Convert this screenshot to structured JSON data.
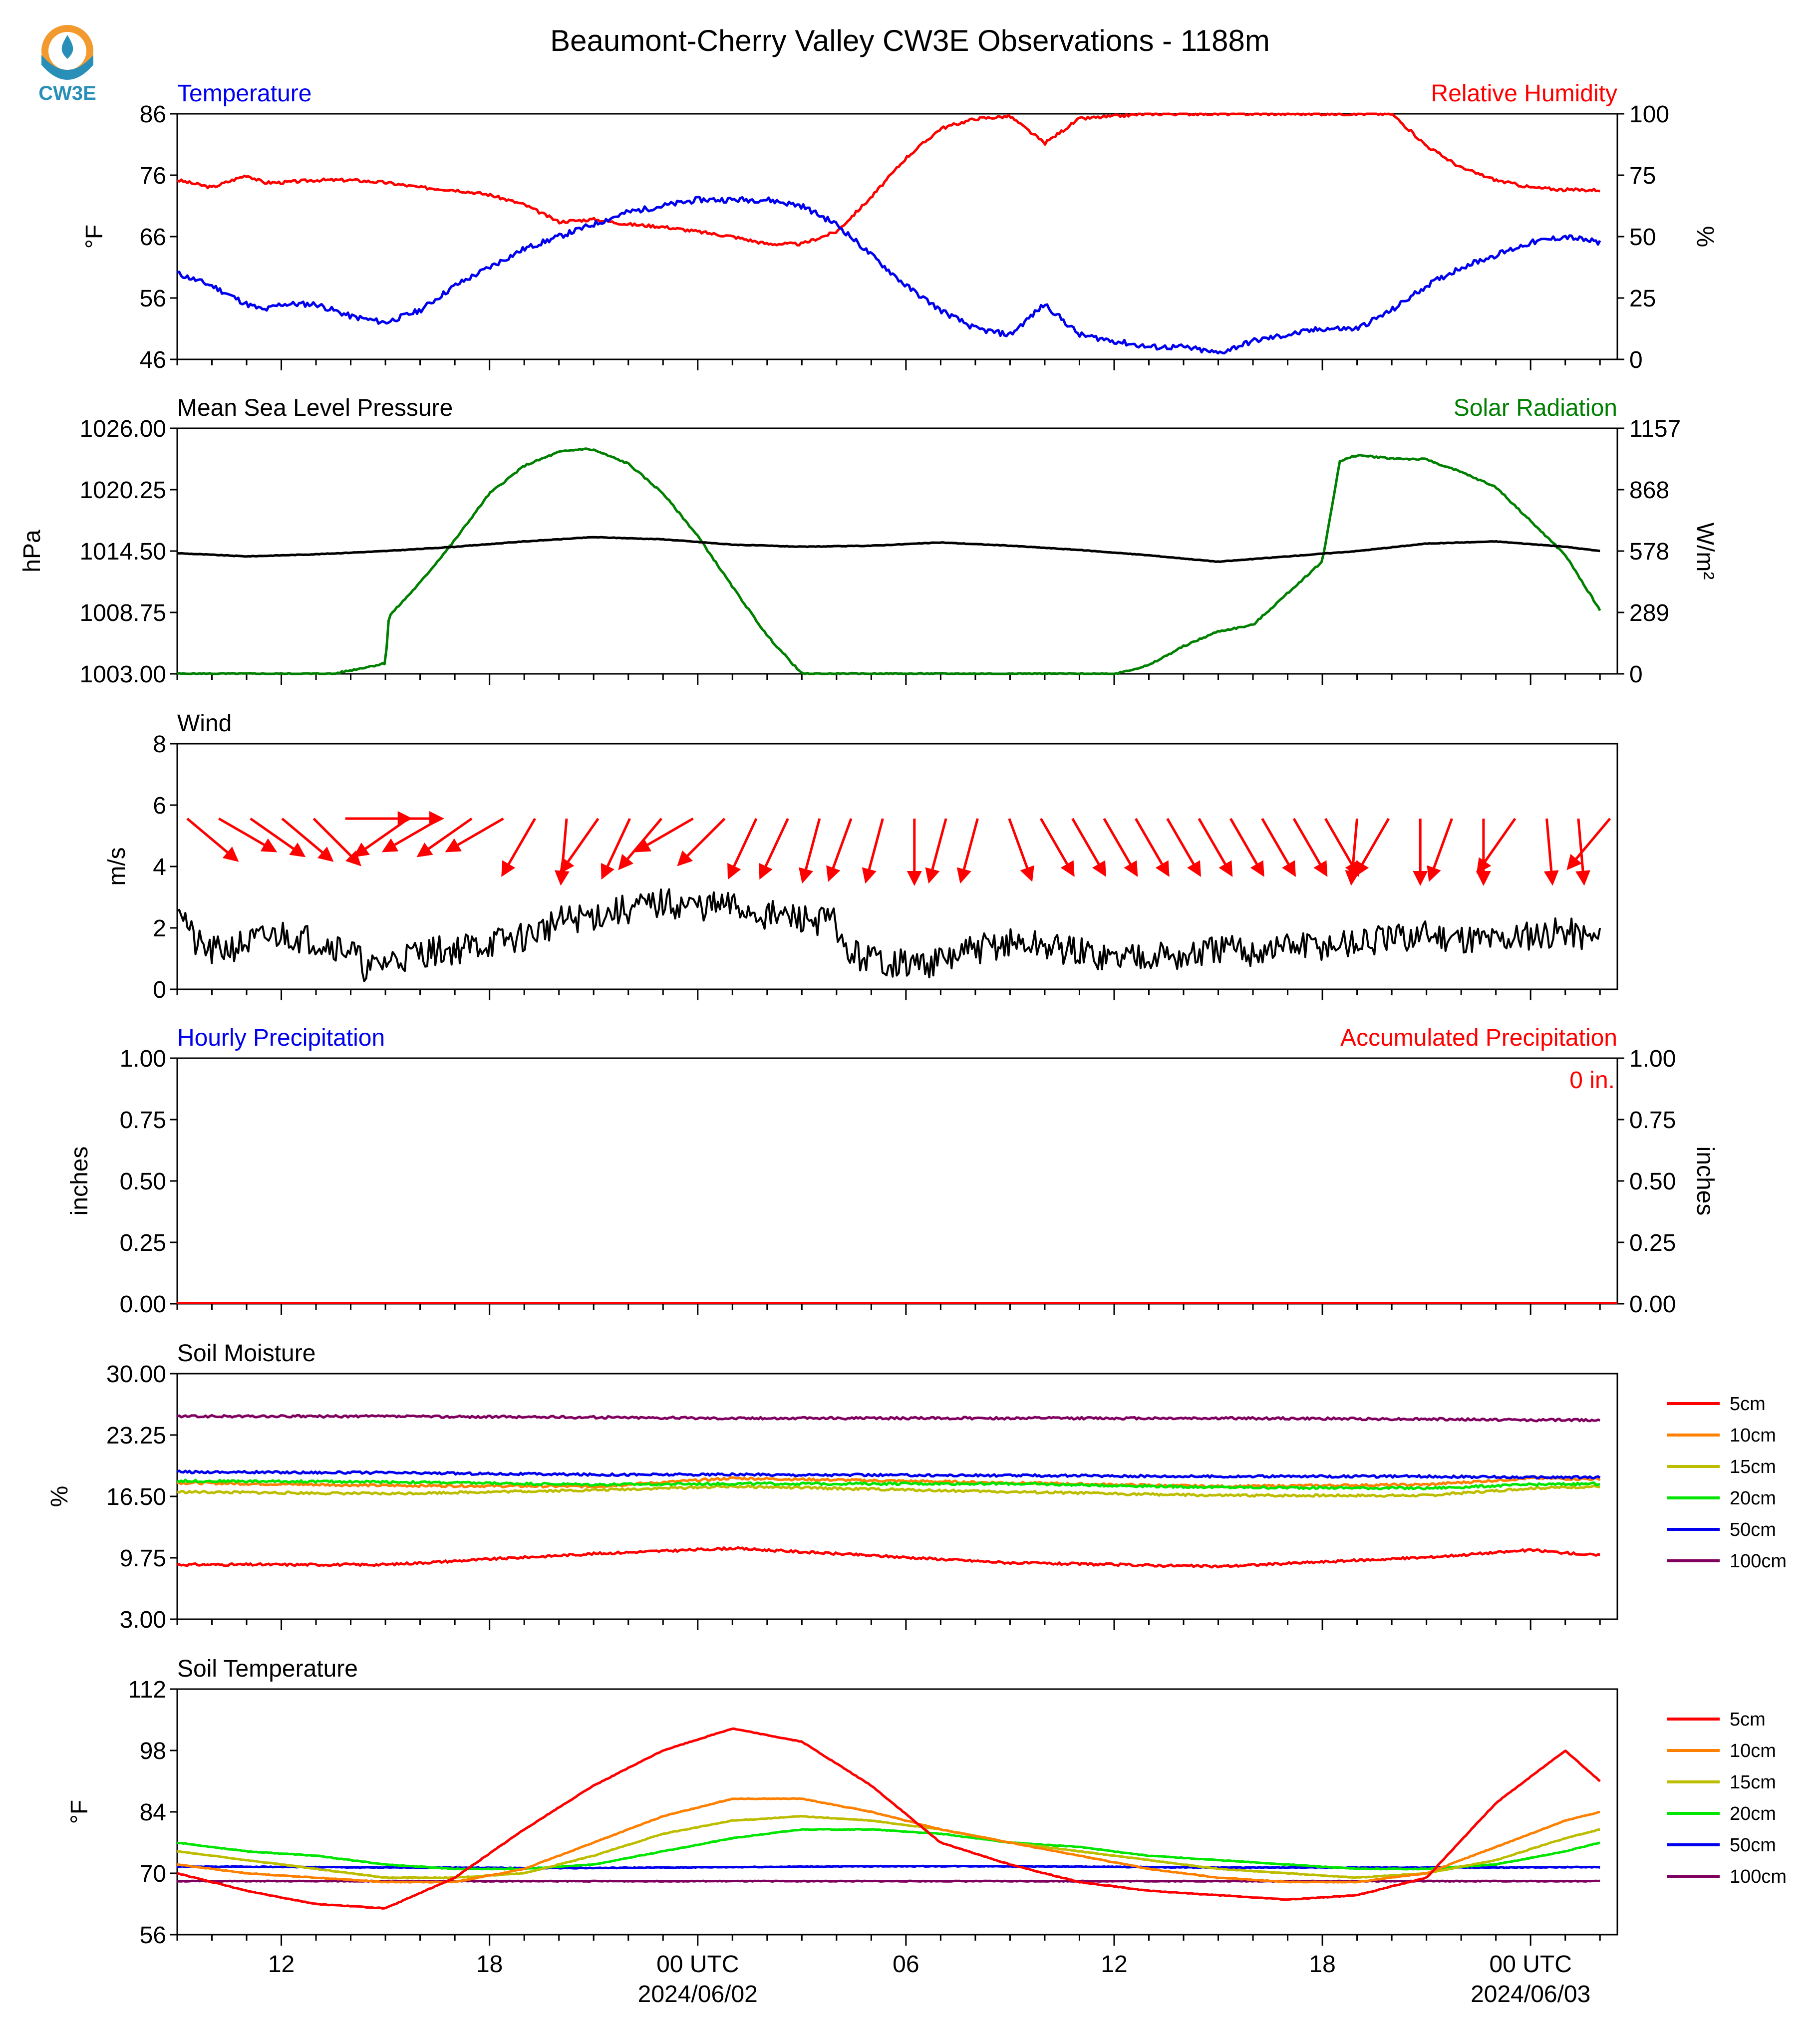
{
  "title": "Beaumont-Cherry Valley CW3E Observations - 1188m",
  "logo": {
    "text": "CW3E",
    "colors": [
      "#f29a2e",
      "#2a8fb8"
    ]
  },
  "x_axis": {
    "tick_labels": [
      "12",
      "18",
      "00 UTC",
      "06",
      "12",
      "18",
      "00 UTC"
    ],
    "date_labels": [
      "2024/06/02",
      "2024/06/03"
    ]
  },
  "colors": {
    "temperature": "#0000ee",
    "humidity": "#ff0000",
    "pressure": "#000000",
    "solar": "#008000",
    "wind": "#000000",
    "wind_arrow": "#ff0000",
    "accum": "#ff0000",
    "hourly": "#0000ee"
  },
  "chart_data": [
    {
      "type": "line",
      "title_left": "Temperature",
      "title_right": "Relative Humidity",
      "ylabel": "°F",
      "ylabel_right": "%",
      "ylim": [
        46,
        86
      ],
      "ylim_right": [
        0,
        100
      ],
      "yticks": [
        "86",
        "76",
        "66",
        "56",
        "46"
      ],
      "yticks_right": [
        "100",
        "75",
        "50",
        "25",
        "0"
      ],
      "x_hours_from_start": [
        0,
        1,
        2,
        2.5,
        3,
        4,
        5,
        6,
        7,
        8,
        9,
        10,
        11,
        12,
        13,
        14,
        15,
        16,
        17,
        18,
        19,
        20,
        21,
        22,
        23,
        24,
        25,
        26,
        27,
        28,
        29,
        30,
        31,
        32,
        33,
        34,
        35,
        36,
        37,
        38,
        39,
        40,
        41
      ],
      "series": [
        {
          "name": "Temperature",
          "values": [
            60,
            58,
            55,
            54,
            55,
            55,
            53,
            52,
            54,
            58,
            61,
            64,
            66,
            68,
            70,
            71,
            72,
            72,
            72,
            71,
            68,
            63,
            58,
            54,
            51,
            50,
            55,
            50,
            49,
            48,
            48,
            47,
            49,
            50,
            51,
            51,
            54,
            58,
            61,
            63,
            65,
            66,
            65
          ]
        },
        {
          "name": "Relative Humidity",
          "values": [
            73,
            70,
            75,
            72,
            72,
            73,
            73,
            72,
            70,
            69,
            67,
            63,
            56,
            57,
            55,
            54,
            52,
            50,
            47,
            47,
            52,
            66,
            82,
            94,
            98,
            99,
            88,
            98,
            99,
            100,
            100,
            100,
            100,
            100,
            100,
            100,
            100,
            87,
            78,
            73,
            70,
            69,
            69
          ]
        }
      ]
    },
    {
      "type": "line",
      "title_left": "Mean Sea Level Pressure",
      "title_right": "Solar Radiation",
      "ylabel": "hPa",
      "ylabel_right": "W/m²",
      "ylim": [
        1003.0,
        1026.0
      ],
      "ylim_right": [
        0,
        1157
      ],
      "yticks": [
        "1026.00",
        "1020.25",
        "1014.50",
        "1008.75",
        "1003.00"
      ],
      "yticks_right": [
        "1157",
        "868",
        "578",
        "289",
        "0"
      ],
      "pressure": {
        "name": "Mean Sea Level Pressure",
        "x_hours_from_start": [
          0,
          2,
          4,
          6,
          8,
          10,
          12,
          14,
          16,
          18,
          20,
          22,
          24,
          26,
          28,
          30,
          32,
          34,
          36,
          38,
          40,
          41
        ],
        "values": [
          1014.3,
          1014.0,
          1014.2,
          1014.5,
          1014.9,
          1015.4,
          1015.8,
          1015.6,
          1015.1,
          1014.9,
          1015.0,
          1015.3,
          1015.0,
          1014.6,
          1014.1,
          1013.5,
          1014.0,
          1014.5,
          1015.2,
          1015.4,
          1014.9,
          1014.5
        ]
      },
      "solar": {
        "name": "Solar Radiation",
        "x_hours_from_start": [
          0,
          3,
          4.5,
          6,
          6.1,
          7,
          8,
          9,
          10,
          11,
          11.7,
          12,
          13,
          14,
          15,
          16,
          17,
          18,
          19,
          27,
          28,
          29,
          30,
          31,
          32,
          33,
          33.5,
          34,
          35,
          36,
          37,
          38,
          39,
          40,
          41
        ],
        "values": [
          0,
          0,
          0,
          50,
          270,
          430,
          630,
          850,
          980,
          1045,
          1060,
          1055,
          990,
          850,
          650,
          410,
          180,
          0,
          0,
          0,
          40,
          130,
          200,
          230,
          380,
          530,
          1000,
          1030,
          1015,
          1010,
          950,
          880,
          720,
          560,
          300
        ]
      }
    },
    {
      "type": "line",
      "title_left": "Wind",
      "ylabel": "m/s",
      "ylim": [
        0,
        8
      ],
      "yticks": [
        "8",
        "6",
        "4",
        "2",
        "0"
      ],
      "x_hours_from_start": [
        0,
        0.5,
        1,
        2,
        3,
        4,
        5,
        5.5,
        6,
        7,
        8,
        9,
        10,
        11,
        12,
        13,
        14,
        15,
        16,
        17,
        18,
        19,
        19.2,
        20,
        21,
        22,
        23,
        24,
        25,
        26,
        27,
        28,
        29,
        30,
        31,
        32,
        33,
        34,
        35,
        36,
        37,
        38,
        39,
        40,
        41
      ],
      "values": [
        3.0,
        1.5,
        1.2,
        1.5,
        1.8,
        1.6,
        1.3,
        0.6,
        0.9,
        1.2,
        1.3,
        1.5,
        1.7,
        2.2,
        2.4,
        2.6,
        2.8,
        2.7,
        2.7,
        2.4,
        2.3,
        2.2,
        1.2,
        1.0,
        0.8,
        0.9,
        1.3,
        1.5,
        1.4,
        1.2,
        1.0,
        1.2,
        1.0,
        1.3,
        1.2,
        1.4,
        1.4,
        1.5,
        1.6,
        1.8,
        1.7,
        1.6,
        1.8,
        1.9,
        1.6
      ],
      "arrow_direction_deg": [
        320,
        330,
        325,
        320,
        315,
        0,
        0,
        215,
        210,
        215,
        210,
        240,
        265,
        235,
        245,
        230,
        210,
        225,
        245,
        245,
        255,
        250,
        255,
        270,
        255,
        255,
        290,
        300,
        300,
        300,
        300,
        300,
        300,
        300,
        300,
        300,
        300,
        265,
        240,
        270,
        250,
        270,
        235,
        275,
        275,
        230
      ]
    },
    {
      "type": "line",
      "title_left": "Hourly Precipitation",
      "title_right": "Accumulated Precipitation",
      "ylabel": "inches",
      "ylabel_right": "inches",
      "ylim": [
        0,
        1
      ],
      "yticks": [
        "1.00",
        "0.75",
        "0.50",
        "0.25",
        "0.00"
      ],
      "accum_label": "0 in.",
      "values": [
        0,
        0
      ]
    },
    {
      "type": "line",
      "title_left": "Soil Moisture",
      "ylabel": "%",
      "ylim": [
        3.0,
        30.0
      ],
      "yticks": [
        "30.00",
        "23.25",
        "16.50",
        "9.75",
        "3.00"
      ],
      "x_hours_from_start": [
        0,
        6,
        12,
        16,
        24,
        30,
        36,
        39,
        41
      ],
      "series": [
        {
          "name": "5cm",
          "color": "#ff0000",
          "values": [
            9.0,
            9.0,
            10.2,
            10.8,
            9.2,
            8.8,
            9.8,
            10.6,
            10.0
          ]
        },
        {
          "name": "10cm",
          "color": "#ff8000",
          "values": [
            18.0,
            17.7,
            17.6,
            18.5,
            18.0,
            17.6,
            17.8,
            18.5,
            18.4
          ]
        },
        {
          "name": "15cm",
          "color": "#bdbd00",
          "values": [
            17.0,
            16.8,
            17.2,
            17.6,
            17.0,
            16.6,
            16.6,
            17.4,
            17.6
          ]
        },
        {
          "name": "20cm",
          "color": "#00e600",
          "values": [
            18.2,
            18.1,
            17.8,
            17.9,
            17.9,
            17.5,
            17.4,
            17.8,
            17.9
          ]
        },
        {
          "name": "50cm",
          "color": "#0000ee",
          "values": [
            19.2,
            19.1,
            18.9,
            18.9,
            18.8,
            18.7,
            18.7,
            18.6,
            18.6
          ]
        },
        {
          "name": "100cm",
          "color": "#800060",
          "values": [
            25.3,
            25.3,
            25.2,
            25.1,
            25.1,
            25.1,
            25.0,
            24.9,
            24.9
          ]
        }
      ]
    },
    {
      "type": "line",
      "title_left": "Soil Temperature",
      "ylabel": "°F",
      "ylim": [
        56,
        112
      ],
      "yticks": [
        "112",
        "98",
        "84",
        "70",
        "56"
      ],
      "x_hours_from_start": [
        0,
        2,
        4,
        6,
        8,
        10,
        12,
        14,
        16,
        18,
        20,
        22,
        24,
        26,
        28,
        30,
        32,
        34,
        36,
        38,
        40,
        41
      ],
      "series": [
        {
          "name": "5cm",
          "color": "#ff0000",
          "values": [
            70,
            66,
            63,
            62,
            69,
            80,
            90,
            98,
            103,
            100,
            90,
            77,
            72,
            68,
            66,
            65,
            64,
            65,
            69,
            86,
            98,
            91
          ]
        },
        {
          "name": "10cm",
          "color": "#ff8000",
          "values": [
            72,
            70,
            69,
            68,
            68,
            71,
            77,
            83,
            87,
            87,
            84,
            80,
            77,
            74,
            71,
            69,
            68,
            68,
            70,
            76,
            82,
            84
          ]
        },
        {
          "name": "15cm",
          "color": "#bdbd00",
          "values": [
            75,
            73,
            71,
            69,
            69,
            70,
            74,
            79,
            82,
            83,
            82,
            80,
            77,
            75,
            73,
            71,
            70,
            69,
            70,
            73,
            78,
            80
          ]
        },
        {
          "name": "20cm",
          "color": "#00e600",
          "values": [
            77,
            75,
            74,
            72,
            71,
            71,
            72,
            75,
            78,
            80,
            80,
            79,
            77,
            76,
            74,
            73,
            72,
            71,
            71,
            72,
            75,
            77
          ]
        },
        {
          "name": "50cm",
          "color": "#0000ee",
          "values": [
            71.5,
            71.5,
            71.4,
            71.3,
            71.3,
            71.2,
            71.2,
            71.3,
            71.4,
            71.5,
            71.6,
            71.6,
            71.6,
            71.5,
            71.4,
            71.3,
            71.3,
            71.3,
            71.3,
            71.3,
            71.4,
            71.4
          ]
        },
        {
          "name": "100cm",
          "color": "#800060",
          "values": [
            68.2,
            68.2,
            68.2,
            68.2,
            68.2,
            68.2,
            68.2,
            68.2,
            68.2,
            68.2,
            68.2,
            68.2,
            68.2,
            68.2,
            68.2,
            68.2,
            68.2,
            68.2,
            68.2,
            68.2,
            68.2,
            68.2
          ]
        }
      ]
    }
  ]
}
